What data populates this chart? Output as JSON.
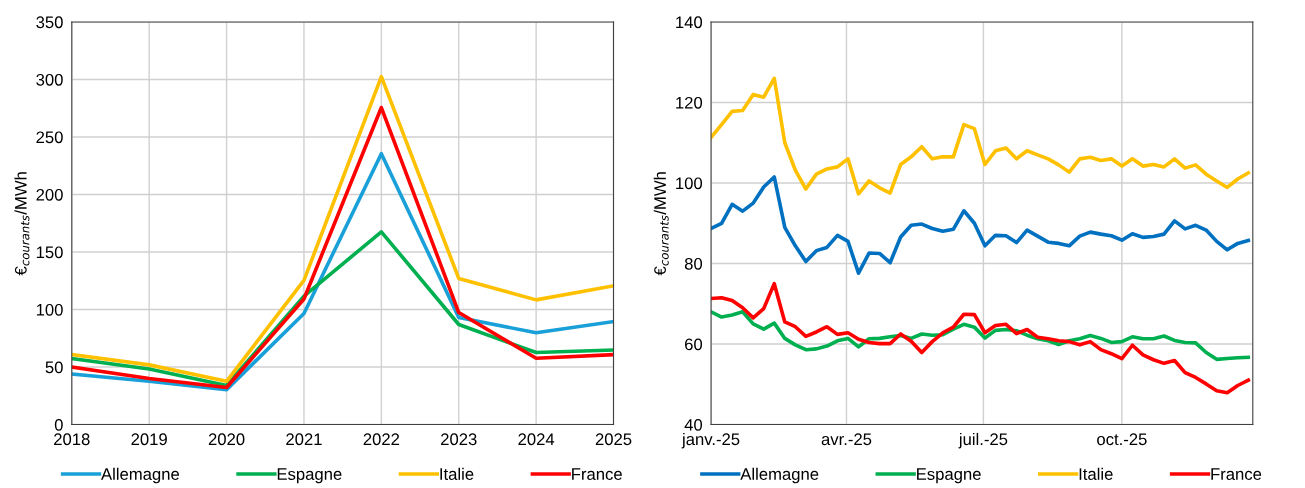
{
  "chart_data": [
    {
      "type": "line",
      "ylabel": "€$_{courants}$/MWh",
      "x": [
        2018,
        2019,
        2020,
        2021,
        2022,
        2023,
        2024,
        2025
      ],
      "xlim": [
        2018,
        2025
      ],
      "xticks": [
        2018,
        2019,
        2020,
        2021,
        2022,
        2023,
        2024,
        2025
      ],
      "ylim": [
        0,
        350
      ],
      "yticks": [
        0,
        50,
        100,
        150,
        200,
        250,
        300,
        350
      ],
      "grid": true,
      "legend": "bottom",
      "marker": "none",
      "line_style": "solid",
      "series": [
        {
          "name": "Allemagne",
          "color": "#1aa0d8",
          "values": [
            44,
            37.6,
            30.4,
            96.6,
            235.5,
            93,
            79.8,
            89.5
          ]
        },
        {
          "name": "Espagne",
          "color": "#00b050",
          "values": [
            57.3,
            48.3,
            34,
            111.7,
            167.5,
            87,
            62.6,
            64.8
          ]
        },
        {
          "name": "Italie",
          "color": "#ffc000",
          "values": [
            60.8,
            51.9,
            37.6,
            125.3,
            302.5,
            127,
            108.4,
            120.6
          ]
        },
        {
          "name": "France",
          "color": "#ff0000",
          "values": [
            50.1,
            40.1,
            32.2,
            109.2,
            275.6,
            97.4,
            57.6,
            60.8
          ]
        }
      ]
    },
    {
      "type": "line",
      "ylabel": "€$_{courants}$/MWh",
      "x": [
        "2025-01-01",
        "2025-01-08",
        "2025-01-15",
        "2025-01-22",
        "2025-01-29",
        "2025-02-05",
        "2025-02-12",
        "2025-02-19",
        "2025-02-26",
        "2025-03-05",
        "2025-03-12",
        "2025-03-19",
        "2025-03-26",
        "2025-04-02",
        "2025-04-09",
        "2025-04-16",
        "2025-04-23",
        "2025-04-30",
        "2025-05-07",
        "2025-05-14",
        "2025-05-21",
        "2025-05-28",
        "2025-06-04",
        "2025-06-11",
        "2025-06-18",
        "2025-06-25",
        "2025-07-02",
        "2025-07-09",
        "2025-07-16",
        "2025-07-23",
        "2025-07-30",
        "2025-08-06",
        "2025-08-13",
        "2025-08-20",
        "2025-08-27",
        "2025-09-03",
        "2025-09-10",
        "2025-09-17",
        "2025-09-24",
        "2025-10-01",
        "2025-10-08",
        "2025-10-15",
        "2025-10-22",
        "2025-10-29",
        "2025-11-05",
        "2025-11-12",
        "2025-11-19",
        "2025-11-26",
        "2025-12-03",
        "2025-12-10",
        "2025-12-17",
        "2025-12-24"
      ],
      "xlim": [
        "2025-01-01",
        "2025-12-27"
      ],
      "xticks": [
        {
          "value": "2025-01-01",
          "label": "janv.-25"
        },
        {
          "value": "2025-04-01",
          "label": "avr.-25"
        },
        {
          "value": "2025-07-01",
          "label": "juil.-25"
        },
        {
          "value": "2025-10-01",
          "label": "oct.-25"
        }
      ],
      "ylim": [
        40,
        140
      ],
      "yticks": [
        40,
        60,
        80,
        100,
        120,
        140
      ],
      "grid": true,
      "legend": "bottom",
      "marker": "none",
      "line_style": "solid",
      "series": [
        {
          "name": "Allemagne",
          "color": "#0070c0",
          "values": [
            88.7,
            90,
            94.7,
            93,
            95,
            99,
            101.5,
            89,
            84.4,
            80.5,
            83.2,
            84,
            87,
            85.5,
            77.6,
            82.6,
            82.5,
            80.2,
            86.6,
            89.5,
            89.8,
            88.7,
            88,
            88.5,
            93.1,
            90,
            84.4,
            87,
            86.9,
            85.2,
            88.3,
            86.8,
            85.3,
            85,
            84.4,
            86.8,
            87.8,
            87.3,
            86.9,
            85.8,
            87.4,
            86.5,
            86.7,
            87.3,
            90.6,
            88.6,
            89.5,
            88.3,
            85.5,
            83.4,
            85,
            85.7
          ]
        },
        {
          "name": "Espagne",
          "color": "#00b050",
          "values": [
            68,
            66.7,
            67.2,
            68,
            65,
            63.7,
            65.2,
            61.4,
            59.8,
            58.6,
            58.8,
            59.5,
            60.8,
            61.4,
            59.3,
            61.3,
            61.4,
            61.8,
            62.1,
            61.4,
            62.5,
            62.2,
            62.3,
            63.7,
            64.9,
            64.2,
            61.5,
            63.4,
            63.6,
            63.3,
            62.2,
            61.3,
            60.8,
            59.9,
            60.8,
            61.3,
            62.1,
            61.4,
            60.4,
            60.6,
            61.8,
            61.3,
            61.3,
            62,
            60.9,
            60.4,
            60.3,
            57.9,
            56.2,
            56.4,
            56.6,
            56.7
          ]
        },
        {
          "name": "Italie",
          "color": "#ffc000",
          "values": [
            111.3,
            114.5,
            117.8,
            118,
            122,
            121.3,
            126,
            110,
            103.2,
            98.5,
            102.2,
            103.5,
            104,
            106,
            97.3,
            100.5,
            98.8,
            97.5,
            104.6,
            106.5,
            109,
            106,
            106.5,
            106.5,
            114.5,
            113.5,
            104.6,
            108,
            108.7,
            106,
            108,
            107,
            106,
            104.5,
            102.7,
            106,
            106.4,
            105.6,
            106,
            104.2,
            106,
            104.2,
            104.6,
            104,
            106,
            103.7,
            104.5,
            102.2,
            100.5,
            98.9,
            101,
            102.5
          ]
        },
        {
          "name": "France",
          "color": "#ff0000",
          "values": [
            71.3,
            71.5,
            70.8,
            69,
            66.5,
            68.8,
            75,
            65.5,
            64.3,
            61.9,
            63,
            64.3,
            62.4,
            62.8,
            61.2,
            60.4,
            60.1,
            60.1,
            62.5,
            60.7,
            57.9,
            60.6,
            62.8,
            64.2,
            67.4,
            67.3,
            62.8,
            64.6,
            64.9,
            62.6,
            63.6,
            61.7,
            61.3,
            60.8,
            60.6,
            59.8,
            60.6,
            58.6,
            57.6,
            56.4,
            59.7,
            57.3,
            56.1,
            55.2,
            55.9,
            52.9,
            51.7,
            50.1,
            48.4,
            47.9,
            49.7,
            51
          ]
        }
      ]
    }
  ]
}
